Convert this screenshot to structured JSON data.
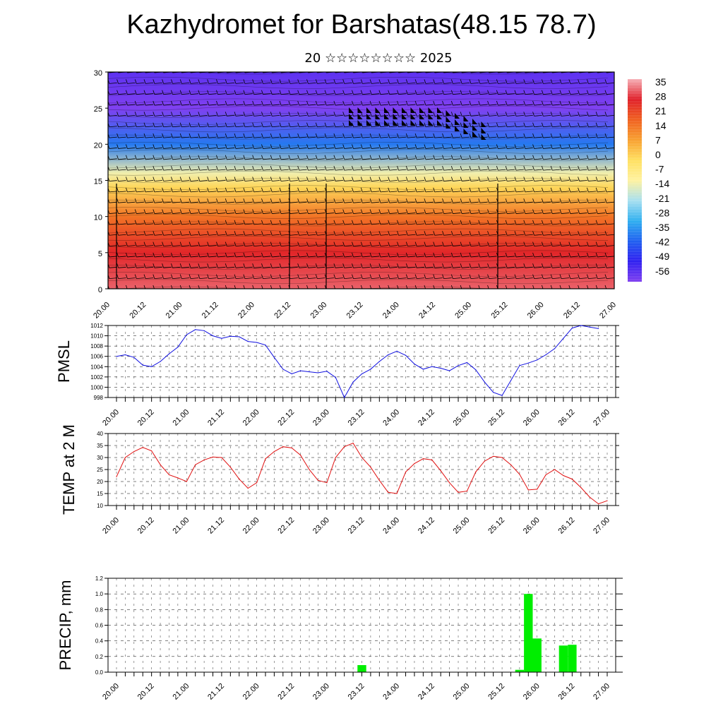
{
  "title": "Kazhydromet for Barshatas(48.15 78.7)",
  "subtitle": "20 ☆☆☆☆☆☆☆☆ 2025",
  "time_ticks": [
    "20.00",
    "20.12",
    "21.00",
    "21.12",
    "22.00",
    "22.12",
    "23.00",
    "23.12",
    "24.00",
    "24.12",
    "25.00",
    "25.12",
    "26.00",
    "26.12",
    "27.00"
  ],
  "chart_data": [
    {
      "type": "heatmap",
      "name_note": "",
      "ylabel": "",
      "ylim": [
        0,
        30
      ],
      "yticks": [
        "0",
        "5",
        "10",
        "15",
        "20",
        "25",
        "30"
      ],
      "colorbar": {
        "labels": [
          "35",
          "28",
          "21",
          "14",
          "7",
          "0",
          "-7",
          "-14",
          "-21",
          "-28",
          "-35",
          "-42",
          "-49",
          "-56"
        ],
        "colors": [
          "#f6b0b6",
          "#e0202a",
          "#f06020",
          "#f8a030",
          "#ffe060",
          "#fff2a0",
          "#a8e0f0",
          "#30b0f0",
          "#2060f0",
          "#3020f0",
          "#8040f0"
        ]
      },
      "layers": [
        {
          "altitude": 0,
          "value": 30
        },
        {
          "altitude": 5,
          "value": 25
        },
        {
          "altitude": 10,
          "value": 14
        },
        {
          "altitude": 14,
          "value": 0
        },
        {
          "altitude": 16,
          "value": -12
        },
        {
          "altitude": 20,
          "value": -35
        },
        {
          "altitude": 25,
          "value": -56
        },
        {
          "altitude": 30,
          "value": -52
        }
      ]
    },
    {
      "type": "line",
      "ylabel": "PMSL",
      "ylim": [
        998,
        1012
      ],
      "yticks": [
        "998",
        "1000",
        "1002",
        "1004",
        "1006",
        "1008",
        "1010",
        "1012"
      ],
      "color": "#1010e0",
      "x_step_hours": 3,
      "values": [
        1006.0,
        1006.3,
        1005.8,
        1004.3,
        1004.0,
        1005.0,
        1006.5,
        1007.8,
        1010.2,
        1011.2,
        1011.0,
        1010.0,
        1009.5,
        1009.9,
        1009.8,
        1008.9,
        1008.7,
        1008.2,
        1005.8,
        1003.5,
        1002.6,
        1003.2,
        1003.0,
        1002.8,
        1003.1,
        1001.9,
        998.0,
        1001.0,
        1002.6,
        1003.5,
        1005.0,
        1006.3,
        1007.0,
        1006.2,
        1004.5,
        1003.5,
        1004.0,
        1003.7,
        1003.2,
        1004.2,
        1004.8,
        1003.4,
        1001.0,
        999.0,
        998.4,
        1001.3,
        1004.2,
        1004.7,
        1005.3,
        1006.3,
        1007.5,
        1009.5,
        1011.5,
        1012.0,
        1011.7,
        1011.4
      ]
    },
    {
      "type": "line",
      "ylabel": "TEMP at 2 M",
      "ylim": [
        10,
        40
      ],
      "yticks": [
        "10",
        "15",
        "20",
        "25",
        "30",
        "35",
        "40"
      ],
      "color": "#e01010",
      "x_step_hours": 3,
      "values": [
        22.0,
        30.0,
        32.5,
        34.2,
        32.8,
        27.0,
        22.8,
        21.5,
        20.0,
        27.0,
        29.0,
        30.2,
        30.0,
        26.0,
        21.0,
        17.2,
        19.5,
        29.5,
        32.5,
        34.5,
        34.0,
        31.0,
        25.0,
        20.5,
        19.5,
        30.0,
        34.5,
        36.0,
        30.0,
        26.0,
        20.5,
        15.5,
        15.0,
        24.0,
        27.5,
        29.5,
        29.0,
        24.5,
        19.5,
        15.5,
        16.0,
        24.0,
        28.5,
        30.5,
        30.0,
        27.0,
        23.0,
        16.5,
        16.8,
        22.8,
        25.0,
        22.5,
        21.0,
        17.5,
        13.5,
        10.7,
        12.0
      ]
    },
    {
      "type": "bar",
      "ylabel": "PRECIP, mm",
      "ylim": [
        0,
        1.2
      ],
      "yticks": [
        "0.0",
        "0.2",
        "0.4",
        "0.6",
        "0.8",
        "1.0",
        "1.2"
      ],
      "color": "#00ee00",
      "bars": [
        {
          "time": "23.12",
          "value": 0.09
        },
        {
          "time": "25.18",
          "value": 0.03
        },
        {
          "time": "25.21",
          "value": 1.0
        },
        {
          "time": "26.00",
          "value": 0.43
        },
        {
          "time": "26.09",
          "value": 0.34
        },
        {
          "time": "26.12",
          "value": 0.35
        }
      ]
    }
  ]
}
